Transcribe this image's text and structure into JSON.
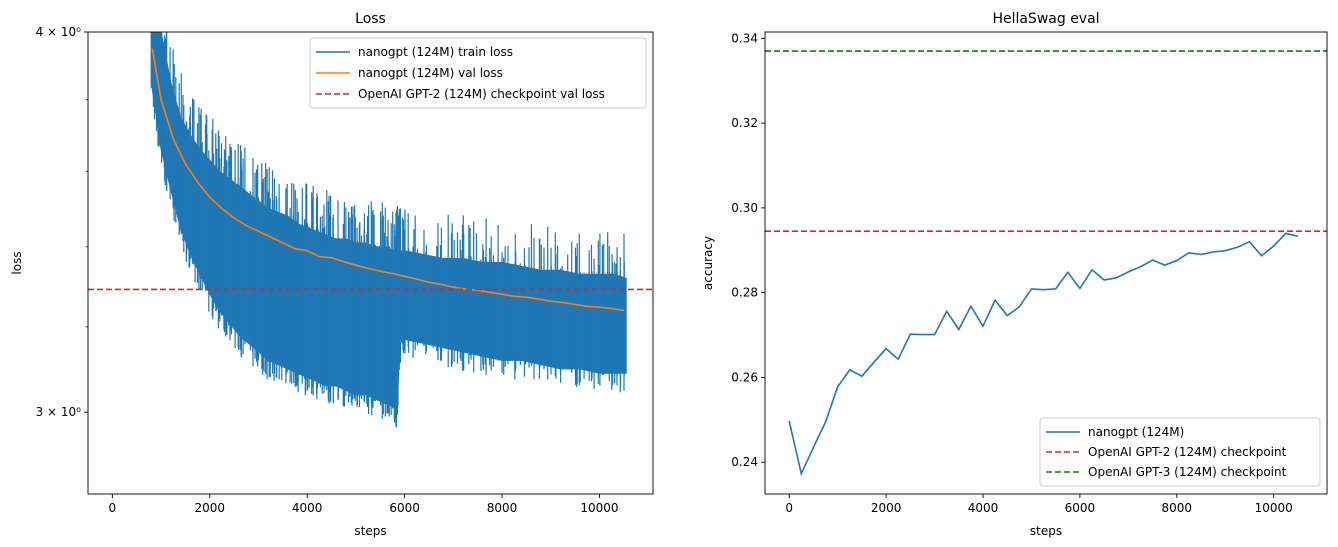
{
  "chart_data": [
    {
      "type": "line",
      "title": "Loss",
      "xlabel": "steps",
      "ylabel": "loss",
      "yscale": "log",
      "xlim": [
        -500,
        11100
      ],
      "ylim": [
        2.82,
        4.0
      ],
      "xticks": [
        0,
        2000,
        4000,
        6000,
        8000,
        10000
      ],
      "xtick_labels": [
        "0",
        "2000",
        "4000",
        "6000",
        "8000",
        "10000"
      ],
      "yticks": [
        3.0,
        4.0
      ],
      "ytick_labels": [
        "3 × 10⁰",
        "4 × 10⁰"
      ],
      "legend_position": "top-right",
      "colors": {
        "train": "#1f77b4",
        "val": "#ff7f0e",
        "ref": "#d62728"
      },
      "series": [
        {
          "name": "nanogpt (124M) train loss",
          "style": "band",
          "x": [
            800,
            1000,
            1200,
            1400,
            1600,
            1800,
            2000,
            2200,
            2400,
            2600,
            2800,
            3000,
            3200,
            3400,
            3600,
            3800,
            4000,
            4200,
            4400,
            4600,
            4800,
            5000,
            5200,
            5400,
            5600,
            5800,
            5850,
            5900,
            6000,
            6400,
            6800,
            7200,
            7600,
            8000,
            8400,
            8800,
            9200,
            9600,
            10000,
            10300,
            10550
          ],
          "low": [
            3.85,
            3.66,
            3.55,
            3.45,
            3.38,
            3.33,
            3.28,
            3.24,
            3.21,
            3.18,
            3.16,
            3.14,
            3.12,
            3.11,
            3.1,
            3.09,
            3.08,
            3.07,
            3.06,
            3.06,
            3.05,
            3.04,
            3.04,
            3.03,
            3.02,
            3.01,
            3.01,
            3.16,
            3.17,
            3.16,
            3.15,
            3.14,
            3.13,
            3.12,
            3.12,
            3.11,
            3.1,
            3.1,
            3.09,
            3.09,
            3.09
          ],
          "high": [
            4.02,
            4.0,
            3.85,
            3.75,
            3.7,
            3.66,
            3.63,
            3.6,
            3.58,
            3.56,
            3.54,
            3.52,
            3.5,
            3.49,
            3.48,
            3.46,
            3.45,
            3.44,
            3.43,
            3.42,
            3.42,
            3.41,
            3.41,
            3.4,
            3.4,
            3.39,
            3.39,
            3.39,
            3.39,
            3.38,
            3.37,
            3.37,
            3.36,
            3.36,
            3.35,
            3.34,
            3.34,
            3.33,
            3.33,
            3.33,
            3.32
          ]
        },
        {
          "name": "nanogpt (124M) val loss",
          "style": "line",
          "x": [
            820,
            1000,
            1250,
            1500,
            1750,
            2000,
            2250,
            2500,
            2750,
            3000,
            3250,
            3500,
            3750,
            4000,
            4250,
            4500,
            4750,
            5000,
            5250,
            5500,
            5750,
            6000,
            6250,
            6500,
            6750,
            7000,
            7250,
            7500,
            7750,
            8000,
            8250,
            8500,
            8750,
            9000,
            9250,
            9500,
            9750,
            10000,
            10250,
            10500
          ],
          "y": [
            3.95,
            3.8,
            3.69,
            3.62,
            3.57,
            3.53,
            3.5,
            3.475,
            3.455,
            3.44,
            3.425,
            3.41,
            3.395,
            3.39,
            3.375,
            3.372,
            3.362,
            3.353,
            3.345,
            3.338,
            3.332,
            3.325,
            3.318,
            3.31,
            3.305,
            3.298,
            3.293,
            3.29,
            3.285,
            3.28,
            3.275,
            3.273,
            3.268,
            3.263,
            3.26,
            3.255,
            3.25,
            3.248,
            3.245,
            3.24
          ]
        },
        {
          "name": "OpenAI GPT-2 (124M) checkpoint val loss",
          "style": "hline",
          "y": 3.292
        }
      ]
    },
    {
      "type": "line",
      "title": "HellaSwag eval",
      "xlabel": "steps",
      "ylabel": "accuracy",
      "xlim": [
        -500,
        11100
      ],
      "ylim": [
        0.2325,
        0.3415
      ],
      "xticks": [
        0,
        2000,
        4000,
        6000,
        8000,
        10000
      ],
      "xtick_labels": [
        "0",
        "2000",
        "4000",
        "6000",
        "8000",
        "10000"
      ],
      "yticks": [
        0.24,
        0.26,
        0.28,
        0.3,
        0.32,
        0.34
      ],
      "ytick_labels": [
        "0.24",
        "0.26",
        "0.28",
        "0.30",
        "0.32",
        "0.34"
      ],
      "legend_position": "bottom-right",
      "colors": {
        "model": "#1f77b4",
        "gpt2": "#d62728",
        "gpt3": "#008000"
      },
      "series": [
        {
          "name": "nanogpt (124M)",
          "style": "line",
          "x": [
            0,
            250,
            500,
            750,
            1000,
            1250,
            1500,
            1750,
            2000,
            2250,
            2500,
            2750,
            3000,
            3250,
            3500,
            3750,
            4000,
            4250,
            4500,
            4750,
            5000,
            5250,
            5500,
            5750,
            6000,
            6250,
            6500,
            6750,
            7000,
            7250,
            7500,
            7750,
            8000,
            8250,
            8500,
            8750,
            9000,
            9250,
            9500,
            9750,
            10000,
            10250,
            10500
          ],
          "y": [
            0.2497,
            0.2373,
            0.2435,
            0.2495,
            0.2578,
            0.2618,
            0.2603,
            0.2636,
            0.2668,
            0.2643,
            0.2702,
            0.2701,
            0.2701,
            0.2756,
            0.2713,
            0.2768,
            0.2721,
            0.2782,
            0.2746,
            0.2767,
            0.2809,
            0.2807,
            0.2809,
            0.2848,
            0.281,
            0.2854,
            0.283,
            0.2835,
            0.2849,
            0.2861,
            0.2877,
            0.2865,
            0.2876,
            0.2894,
            0.289,
            0.2896,
            0.2899,
            0.2907,
            0.292,
            0.2887,
            0.291,
            0.294,
            0.2933
          ]
        },
        {
          "name": "OpenAI GPT-2 (124M) checkpoint",
          "style": "hline",
          "y": 0.2945
        },
        {
          "name": "OpenAI GPT-3 (124M) checkpoint",
          "style": "hline",
          "y": 0.337
        }
      ]
    }
  ]
}
